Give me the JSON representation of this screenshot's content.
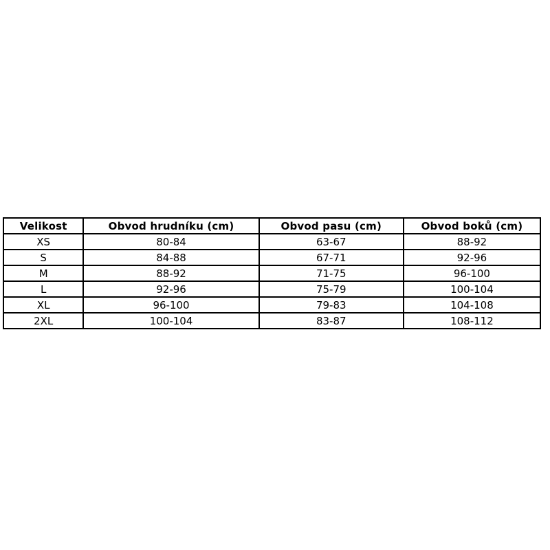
{
  "chart_data": {
    "type": "table",
    "title": "",
    "columns": [
      "Velikost",
      "Obvod hrudníku (cm)",
      "Obvod pasu (cm)",
      "Obvod boků (cm)"
    ],
    "rows": [
      [
        "XS",
        "80-84",
        "63-67",
        "88-92"
      ],
      [
        "S",
        "84-88",
        "67-71",
        "92-96"
      ],
      [
        "M",
        "88-92",
        "71-75",
        "96-100"
      ],
      [
        "L",
        "92-96",
        "75-79",
        "100-104"
      ],
      [
        "XL",
        "96-100",
        "79-83",
        "104-108"
      ],
      [
        "2XL",
        "100-104",
        "83-87",
        "108-112"
      ]
    ]
  },
  "colors": {
    "background": "#ffffff",
    "border": "#000000",
    "text": "#000000"
  }
}
